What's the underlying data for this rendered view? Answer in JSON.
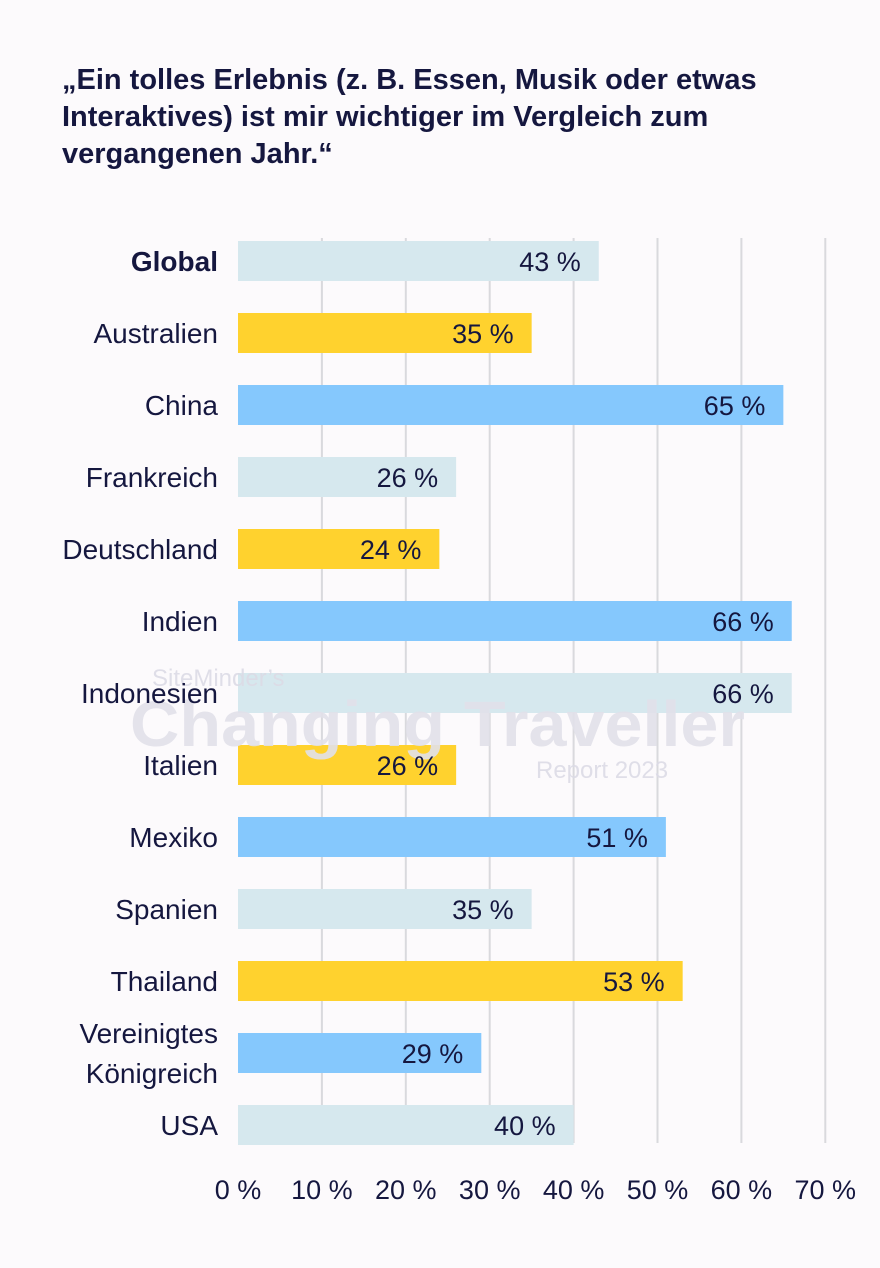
{
  "chart_data": {
    "type": "bar",
    "orientation": "horizontal",
    "title": "„Ein tolles Erlebnis (z. B. Essen, Musik oder etwas Interaktives) ist mir wichtiger im Vergleich zum vergangenen Jahr.“",
    "categories": [
      "Global",
      "Australien",
      "China",
      "Frankreich",
      "Deutschland",
      "Indien",
      "Indonesien",
      "Italien",
      "Mexiko",
      "Spanien",
      "Thailand",
      "Vereinigtes Königreich",
      "USA"
    ],
    "values": [
      43,
      35,
      65,
      26,
      24,
      66,
      66,
      26,
      51,
      35,
      53,
      29,
      40
    ],
    "value_labels": [
      "43 %",
      "35 %",
      "65 %",
      "26 %",
      "24 %",
      "66 %",
      "66 %",
      "26 %",
      "51 %",
      "35 %",
      "53 %",
      "29 %",
      "40 %"
    ],
    "bar_colors": [
      "#d6e8ee",
      "#ffd22e",
      "#85c8fd",
      "#d6e8ee",
      "#ffd22e",
      "#85c8fd",
      "#d6e8ee",
      "#ffd22e",
      "#85c8fd",
      "#d6e8ee",
      "#ffd22e",
      "#85c8fd",
      "#d6e8ee"
    ],
    "xlim": [
      0,
      70
    ],
    "x_ticks": [
      0,
      10,
      20,
      30,
      40,
      50,
      60,
      70
    ],
    "x_tick_labels": [
      "0 %",
      "10 %",
      "20 %",
      "30 %",
      "40 %",
      "50 %",
      "60 %",
      "70 %"
    ],
    "grid": true,
    "xlabel": "",
    "ylabel": ""
  },
  "watermark": {
    "line1": "SiteMinder’s",
    "line2": "Changing Traveller",
    "line3": "Report 2023"
  }
}
